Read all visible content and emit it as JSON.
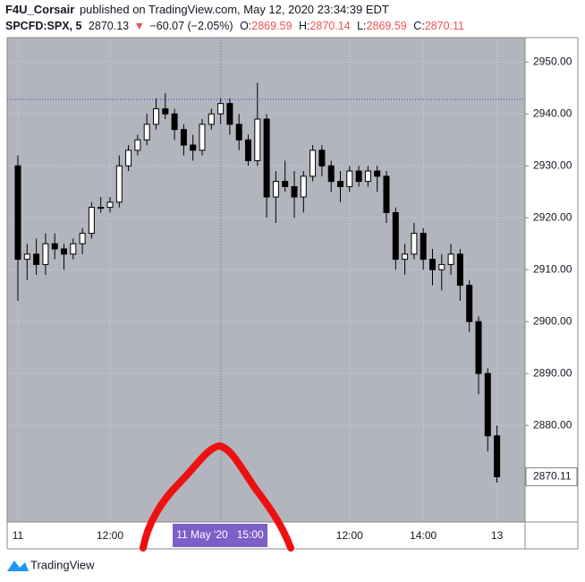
{
  "header": {
    "author": "F4U_Corsair",
    "published": "published on TradingView.com, May 12, 2020 23:34:39 EDT",
    "symbol": "SPCFD:SPX, 5",
    "last": "2870.13",
    "arrow": "▼",
    "change": "−60.07 (−2.05%)",
    "o_label": "O:",
    "o": "2869.59",
    "h_label": "H:",
    "h": "2870.14",
    "l_label": "L:",
    "l": "2869.59",
    "c_label": "C:",
    "c": "2870.11"
  },
  "chart_data": {
    "type": "candlestick",
    "categories": [
      "11",
      null,
      null,
      null,
      null,
      null,
      null,
      null,
      null,
      null,
      "12:00",
      null,
      null,
      null,
      null,
      null,
      null,
      null,
      null,
      null,
      null,
      null,
      null,
      null,
      null,
      null,
      null,
      null,
      null,
      null,
      null,
      null,
      null,
      null,
      null,
      null,
      "12:00",
      null,
      null,
      null,
      null,
      null,
      null,
      null,
      "14:00",
      null,
      null,
      null,
      null,
      null,
      null,
      null,
      "13"
    ],
    "open": [
      2930,
      2912,
      2913,
      2911,
      2915,
      2914,
      2913,
      2915,
      2917,
      2922,
      2922,
      2923,
      2930,
      2933,
      2935,
      2938,
      2941,
      2940,
      2937,
      2934,
      2933,
      2938,
      2940,
      2942,
      2938,
      2935,
      2931,
      2939,
      2924,
      2927,
      2926,
      2924,
      2928,
      2933,
      2930,
      2927,
      2926,
      2929,
      2927,
      2929,
      2928,
      2921,
      2912,
      2913,
      2917,
      2912,
      2910,
      2911,
      2913,
      2907,
      2900,
      2890,
      2878
    ],
    "high": [
      2932,
      2915,
      2916,
      2917,
      2917,
      2915,
      2916,
      2918,
      2923,
      2924,
      2924,
      2932,
      2934,
      2936,
      2940,
      2943,
      2944,
      2941,
      2938,
      2936,
      2939,
      2941,
      2943,
      2943,
      2940,
      2936,
      2946,
      2940,
      2929,
      2931,
      2929,
      2929,
      2934,
      2934,
      2931,
      2929,
      2930,
      2930,
      2930,
      2930,
      2929,
      2922,
      2915,
      2919,
      2918,
      2914,
      2913,
      2915,
      2914,
      2908,
      2901,
      2891,
      2880
    ],
    "low": [
      2904,
      2908,
      2909,
      2909,
      2912,
      2910,
      2912,
      2913,
      2916,
      2921,
      2921,
      2922,
      2929,
      2932,
      2934,
      2937,
      2939,
      2935,
      2932,
      2931,
      2932,
      2937,
      2938,
      2936,
      2933,
      2930,
      2930,
      2920,
      2919,
      2925,
      2920,
      2921,
      2927,
      2928,
      2925,
      2923,
      2925,
      2926,
      2926,
      2925,
      2919,
      2910,
      2909,
      2912,
      2910,
      2907,
      2906,
      2909,
      2904,
      2898,
      2886,
      2875,
      2869
    ],
    "close": [
      2912,
      2913,
      2911,
      2915,
      2914,
      2913,
      2915,
      2917,
      2922,
      2922,
      2923,
      2930,
      2933,
      2935,
      2938,
      2941,
      2940,
      2937,
      2934,
      2933,
      2938,
      2940,
      2942,
      2938,
      2935,
      2931,
      2939,
      2924,
      2927,
      2926,
      2924,
      2928,
      2933,
      2930,
      2927,
      2926,
      2929,
      2927,
      2929,
      2928,
      2921,
      2912,
      2913,
      2917,
      2912,
      2910,
      2911,
      2913,
      2907,
      2900,
      2890,
      2878,
      2870.11
    ],
    "up_color": "#ffffff",
    "down_color": "#000000",
    "ylim": [
      2861.4,
      2954.7
    ],
    "yticks": [
      {
        "value": 2880,
        "label": "2880.00"
      },
      {
        "value": 2890,
        "label": "2890.00"
      },
      {
        "value": 2900,
        "label": "2900.00"
      },
      {
        "value": 2910,
        "label": "2910.00"
      },
      {
        "value": 2920,
        "label": "2920.00"
      },
      {
        "value": 2930,
        "label": "2930.00"
      },
      {
        "value": 2940,
        "label": "2940.00"
      },
      {
        "value": 2950,
        "label": "2950.00"
      }
    ],
    "grid": true,
    "last_price": {
      "value": 2870.11,
      "label": "2870.11"
    },
    "crosshair": {
      "label": "11 May '20   15:00",
      "price": 2942.8
    }
  },
  "footer": {
    "brand": "TradingView"
  }
}
